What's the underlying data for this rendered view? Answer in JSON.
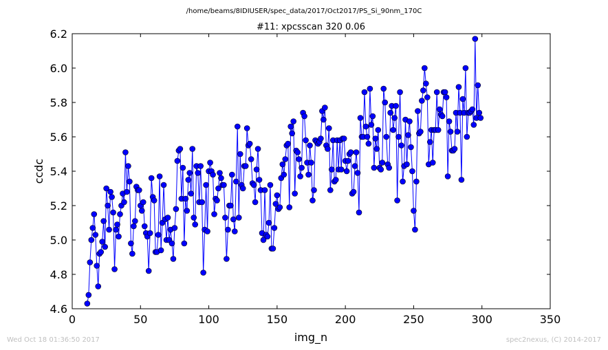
{
  "header": {
    "path": "/home/beams/8IDIUSER/spec_data/2017/Oct2017/PS_Si_90nm_170C"
  },
  "footer": {
    "timestamp": "Wed Oct 18 01:36:50 2017",
    "credit": "spec2nexus, (C) 2014-2017"
  },
  "chart_data": {
    "type": "line",
    "title": "#11: xpcsscan 320 0.06",
    "xlabel": "img_n",
    "ylabel": "ccdc",
    "xlim": [
      0,
      350
    ],
    "ylim": [
      4.6,
      6.2
    ],
    "xticks": [
      0,
      50,
      100,
      150,
      200,
      250,
      300,
      350
    ],
    "yticks": [
      4.6,
      4.8,
      5.0,
      5.2,
      5.4,
      5.6,
      5.8,
      6.0,
      6.2
    ],
    "grid": false,
    "legend": "none",
    "color": "#0000ff",
    "marker": "circle",
    "x_start": 11,
    "x_step": 1,
    "values": [
      4.63,
      4.68,
      4.87,
      5.0,
      5.07,
      5.15,
      5.03,
      4.85,
      4.73,
      4.92,
      4.93,
      4.99,
      5.11,
      4.96,
      5.3,
      5.2,
      5.06,
      5.28,
      5.25,
      5.16,
      4.83,
      5.06,
      5.09,
      5.02,
      5.15,
      5.2,
      5.27,
      5.22,
      5.51,
      5.28,
      5.43,
      5.34,
      4.98,
      4.92,
      5.08,
      5.11,
      5.31,
      5.29,
      5.29,
      5.2,
      5.17,
      5.22,
      5.08,
      5.04,
      5.02,
      4.82,
      5.04,
      5.36,
      5.25,
      5.23,
      4.93,
      4.93,
      5.03,
      5.37,
      4.94,
      5.1,
      5.32,
      5.12,
      5.0,
      5.13,
      5.0,
      5.06,
      4.98,
      4.89,
      5.07,
      5.18,
      5.46,
      5.52,
      5.53,
      5.24,
      5.42,
      4.98,
      5.24,
      5.17,
      5.35,
      5.39,
      5.27,
      5.53,
      5.13,
      5.09,
      5.43,
      5.39,
      5.22,
      5.43,
      5.22,
      4.81,
      5.06,
      5.32,
      5.05,
      5.4,
      5.45,
      5.4,
      5.38,
      5.15,
      5.24,
      5.23,
      5.3,
      5.39,
      5.36,
      5.32,
      5.32,
      5.13,
      4.89,
      5.06,
      5.2,
      5.2,
      5.38,
      5.12,
      5.05,
      5.34,
      5.66,
      5.13,
      5.5,
      5.32,
      5.3,
      5.43,
      5.43,
      5.65,
      5.55,
      5.56,
      5.47,
      5.33,
      5.32,
      5.22,
      5.41,
      5.53,
      5.35,
      5.29,
      5.04,
      5.0,
      5.29,
      5.03,
      5.02,
      5.1,
      5.32,
      4.95,
      4.95,
      5.07,
      5.21,
      5.26,
      5.18,
      5.19,
      5.36,
      5.44,
      5.38,
      5.47,
      5.55,
      5.56,
      5.19,
      5.66,
      5.62,
      5.69,
      5.27,
      5.52,
      5.51,
      5.47,
      5.37,
      5.42,
      5.74,
      5.72,
      5.58,
      5.45,
      5.38,
      5.55,
      5.45,
      5.23,
      5.29,
      5.58,
      5.57,
      5.56,
      5.57,
      5.59,
      5.75,
      5.7,
      5.77,
      5.55,
      5.53,
      5.65,
      5.29,
      5.41,
      5.58,
      5.34,
      5.35,
      5.58,
      5.41,
      5.58,
      5.41,
      5.59,
      5.59,
      5.46,
      5.4,
      5.46,
      5.5,
      5.51,
      5.27,
      5.28,
      5.43,
      5.51,
      5.39,
      5.16,
      5.71,
      5.6,
      5.6,
      5.86,
      5.66,
      5.6,
      5.56,
      5.88,
      5.67,
      5.72,
      5.42,
      5.59,
      5.53,
      5.64,
      5.42,
      5.41,
      5.45,
      5.88,
      5.8,
      5.6,
      5.44,
      5.42,
      5.74,
      5.78,
      5.64,
      5.71,
      5.78,
      5.23,
      5.6,
      5.86,
      5.55,
      5.34,
      5.43,
      5.7,
      5.44,
      5.61,
      5.69,
      5.54,
      5.4,
      5.17,
      5.06,
      5.34,
      5.75,
      5.62,
      5.63,
      5.81,
      5.87,
      6.0,
      5.91,
      5.83,
      5.44,
      5.57,
      5.64,
      5.45,
      5.64,
      5.64,
      5.86,
      5.64,
      5.76,
      5.73,
      5.72,
      5.86,
      5.86,
      5.83,
      5.37,
      5.69,
      5.63,
      5.52,
      5.52,
      5.53,
      5.74,
      5.63,
      5.89,
      5.74,
      5.35,
      5.82,
      5.74,
      6.0,
      5.6,
      5.74,
      5.74,
      5.75,
      5.76,
      5.67,
      6.17,
      5.71,
      5.9,
      5.74,
      5.71
    ]
  }
}
